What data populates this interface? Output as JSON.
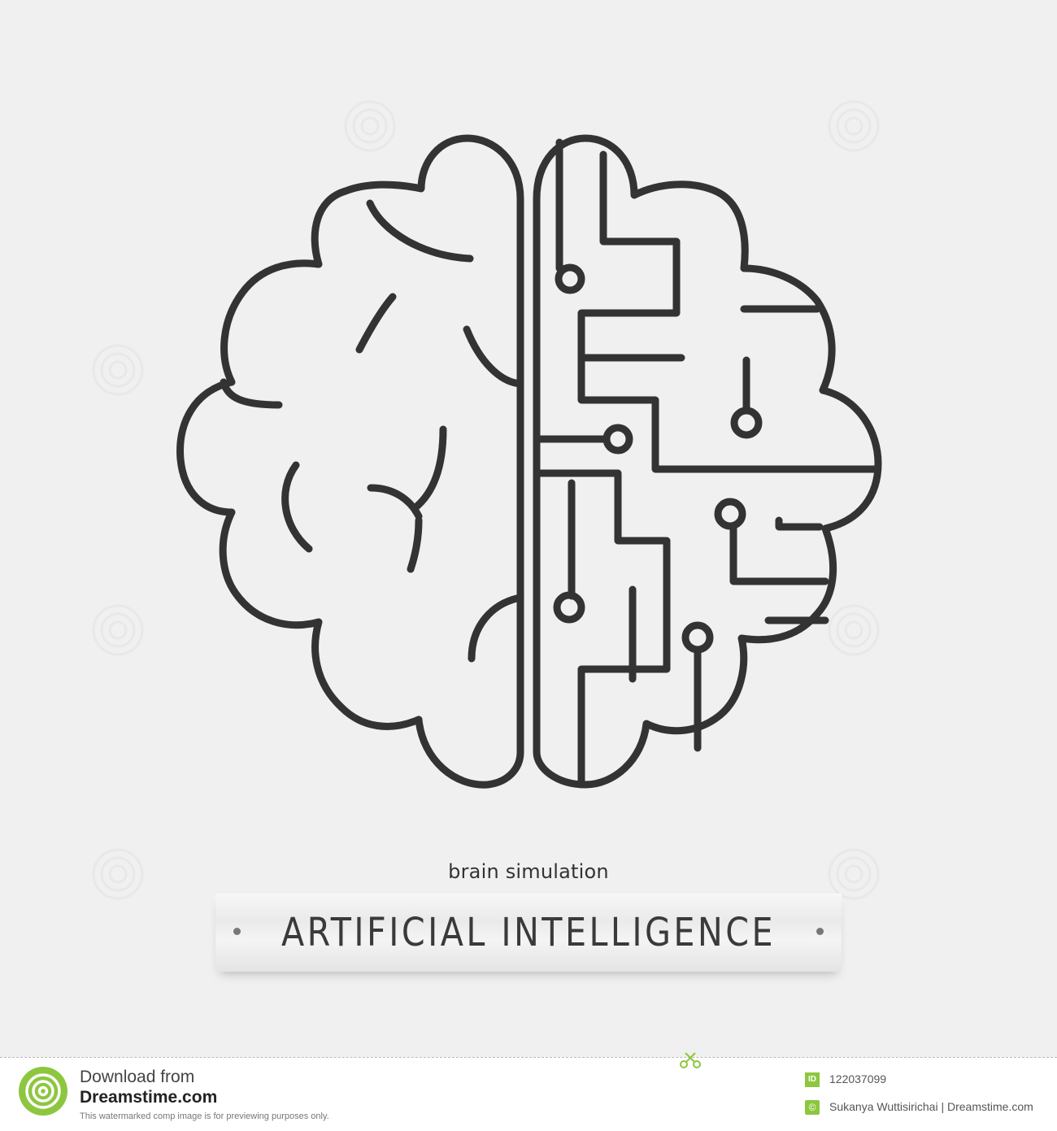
{
  "subtitle": "brain simulation",
  "banner": {
    "title": "ARTIFICIAL INTELLIGENCE"
  },
  "footer": {
    "download_text": "Download from",
    "site_name": "Dreamstime.com",
    "note": "This watermarked comp image is for previewing purposes only.",
    "id_badge": "ID",
    "image_id": "122037099",
    "copyright_symbol": "©",
    "credit": "Sukanya Wuttisirichai | Dreamstime.com"
  },
  "colors": {
    "background": "#f0f0f0",
    "stroke": "#333333",
    "brand_green": "#8dc63f"
  },
  "icons": [
    "brain-circuit-icon",
    "dreamstime-logo-icon",
    "scissors-icon",
    "watermark-swirl-icon"
  ]
}
